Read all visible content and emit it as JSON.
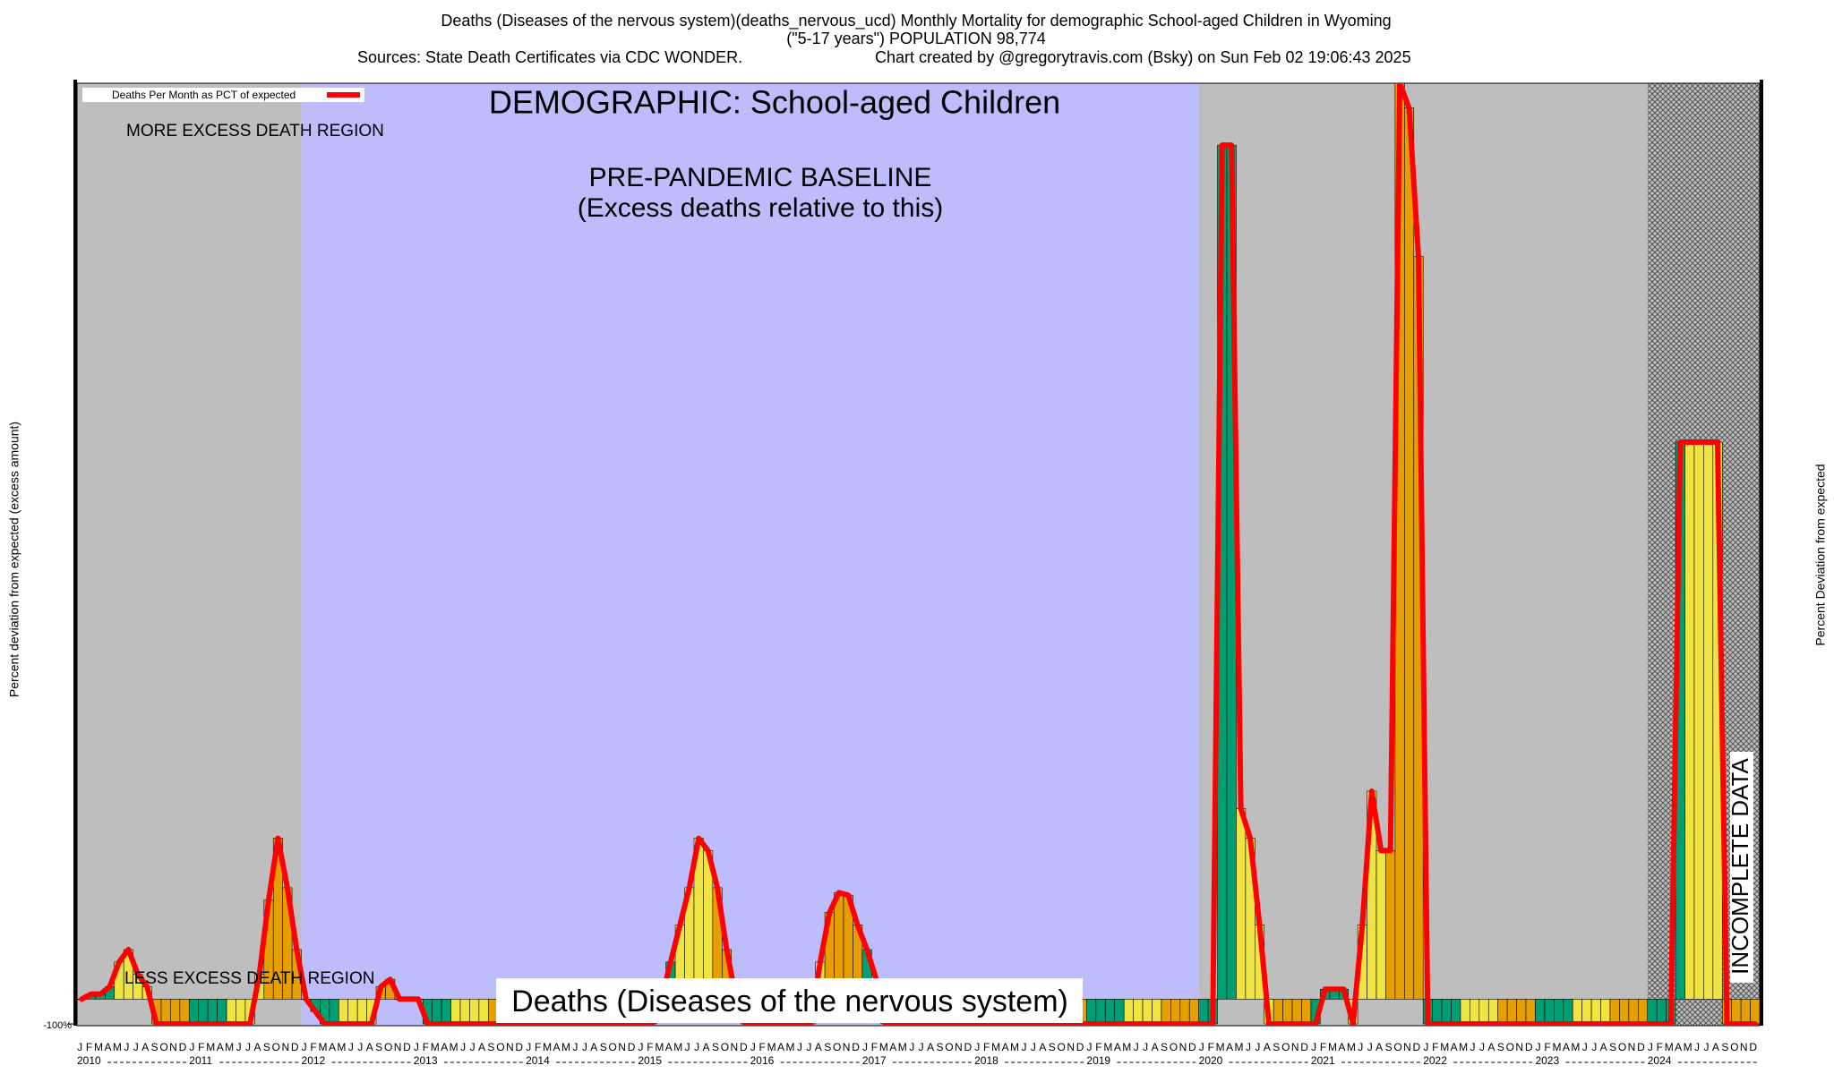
{
  "chart_data": {
    "type": "bar",
    "title_lines": [
      "Deaths (Diseases of the nervous system)(deaths_nervous_ucd) Monthly Mortality for demographic School-aged Children in Wyoming",
      "(\"5-17 years\") POPULATION 98,774"
    ],
    "source": "Sources: State Death Certificates via CDC WONDER.",
    "credit": "Chart created by @gregorytravis.com (Bsky) on Sun Feb 02 19:06:43 2025",
    "demographic": "DEMOGRAPHIC: School-aged Children",
    "more_region": "MORE EXCESS DEATH REGION",
    "less_region": "LESS EXCESS DEATH REGION",
    "baseline_title": "PRE-PANDEMIC BASELINE",
    "baseline_note": "(Excess deaths relative to this)",
    "incomplete": "INCOMPLETE DATA",
    "cause": "Deaths (Diseases of the nervous system)",
    "y_label": "Percent deviation from expected (excess amount)",
    "y2_label": "Percent Deviation from expected",
    "years": [
      "2010",
      "2011",
      "2012",
      "2013",
      "2014",
      "2015",
      "2016",
      "2017",
      "2018",
      "2019",
      "2020",
      "2021",
      "2022",
      "2023",
      "2024"
    ],
    "categories": [
      "J",
      "F",
      "M",
      "A",
      "M",
      "J",
      "J",
      "A",
      "S",
      "O",
      "N",
      "D",
      "J",
      "F",
      "M",
      "A",
      "M",
      "J",
      "J",
      "A",
      "S",
      "O",
      "N",
      "D",
      "J",
      "F",
      "M",
      "A",
      "M",
      "J",
      "J",
      "A",
      "S",
      "O",
      "N",
      "D",
      "J",
      "F",
      "M",
      "A",
      "M",
      "J",
      "J",
      "A",
      "S",
      "O",
      "N",
      "D",
      "J",
      "F",
      "M",
      "A",
      "M",
      "J",
      "J",
      "A",
      "S",
      "O",
      "N",
      "D",
      "J",
      "F",
      "M",
      "A",
      "M",
      "J",
      "J",
      "A",
      "S",
      "O",
      "N",
      "D",
      "J",
      "F",
      "M",
      "A",
      "M",
      "J",
      "J",
      "A",
      "S",
      "O",
      "N",
      "D",
      "J",
      "F",
      "M",
      "A",
      "M",
      "J",
      "J",
      "A",
      "S",
      "O",
      "N",
      "D",
      "J",
      "F",
      "M",
      "A",
      "M",
      "J",
      "J",
      "A",
      "S",
      "O",
      "N",
      "D",
      "J",
      "F",
      "M",
      "A",
      "M",
      "J",
      "J",
      "A",
      "S",
      "O",
      "N",
      "D",
      "J",
      "F",
      "M",
      "A",
      "M",
      "J",
      "J",
      "A",
      "S",
      "O",
      "N",
      "D",
      "J",
      "F",
      "M",
      "A",
      "M",
      "J",
      "J",
      "A",
      "S",
      "O",
      "N",
      "D",
      "J",
      "F",
      "M",
      "A",
      "M",
      "J",
      "J",
      "A",
      "S",
      "O",
      "N",
      "D",
      "J",
      "F",
      "M",
      "A",
      "M",
      "J",
      "J",
      "A",
      "S",
      "O",
      "N",
      "D",
      "J",
      "F",
      "M",
      "A",
      "M",
      "J",
      "J",
      "A",
      "S",
      "O",
      "N",
      "D"
    ],
    "series": [
      {
        "name": "Deaths Per Month as PCT of expected",
        "color": "#ff0000",
        "values": [
          0,
          20,
          20,
          50,
          150,
          200,
          100,
          50,
          -100,
          -100,
          -100,
          -100,
          -100,
          -100,
          -100,
          -100,
          -100,
          -100,
          -100,
          100,
          400,
          650,
          450,
          200,
          0,
          -50,
          -100,
          -100,
          -100,
          -100,
          -100,
          -100,
          50,
          80,
          0,
          0,
          0,
          -100,
          -100,
          -100,
          -100,
          -100,
          -100,
          -100,
          -100,
          -100,
          -100,
          -100,
          -100,
          -100,
          -100,
          -100,
          -100,
          -100,
          -100,
          -100,
          -100,
          -100,
          -100,
          -100,
          -100,
          -100,
          0,
          150,
          300,
          450,
          650,
          600,
          450,
          200,
          0,
          -100,
          -100,
          -100,
          -100,
          -100,
          -100,
          -100,
          -100,
          150,
          350,
          430,
          420,
          300,
          200,
          80,
          -100,
          -100,
          -100,
          -100,
          -100,
          -100,
          -100,
          -100,
          -100,
          -100,
          -100,
          -100,
          -100,
          -100,
          -100,
          -100,
          -100,
          -100,
          -100,
          -100,
          -100,
          -100,
          -100,
          -100,
          -100,
          -100,
          -100,
          -100,
          -100,
          -100,
          -100,
          -100,
          -100,
          -100,
          -100,
          -100,
          3450,
          3450,
          770,
          650,
          300,
          -100,
          -100,
          -100,
          -100,
          -100,
          -100,
          40,
          40,
          40,
          -100,
          300,
          840,
          600,
          600,
          3700,
          3600,
          3000,
          -100,
          -100,
          -100,
          -100,
          -100,
          -100,
          -100,
          -100,
          -100,
          -100,
          -100,
          -100,
          -100,
          -100,
          -100,
          -100,
          -100,
          -100,
          -100,
          -100,
          -100,
          -100,
          -100,
          -100,
          -100,
          -100,
          -100,
          2250,
          2250,
          2250,
          2250,
          2250,
          -100,
          -100,
          -100,
          -100
        ]
      }
    ],
    "bar_colors": [
      "#009e73",
      "#f0e442",
      "#e69f00"
    ],
    "regions": [
      {
        "start": 2010,
        "end": 2011,
        "color": "#bebebe"
      },
      {
        "start": 2012,
        "end": 2019,
        "color": "#bdbdfc"
      },
      {
        "start": 2020,
        "end": 2023,
        "color": "#bebebe"
      },
      {
        "start": 2024,
        "end": 2024,
        "color": "#bebebe",
        "hatched": true
      }
    ],
    "ylim": [
      -100,
      3700
    ],
    "yticks": [
      {
        "value": -100,
        "label": "-100%"
      }
    ]
  }
}
